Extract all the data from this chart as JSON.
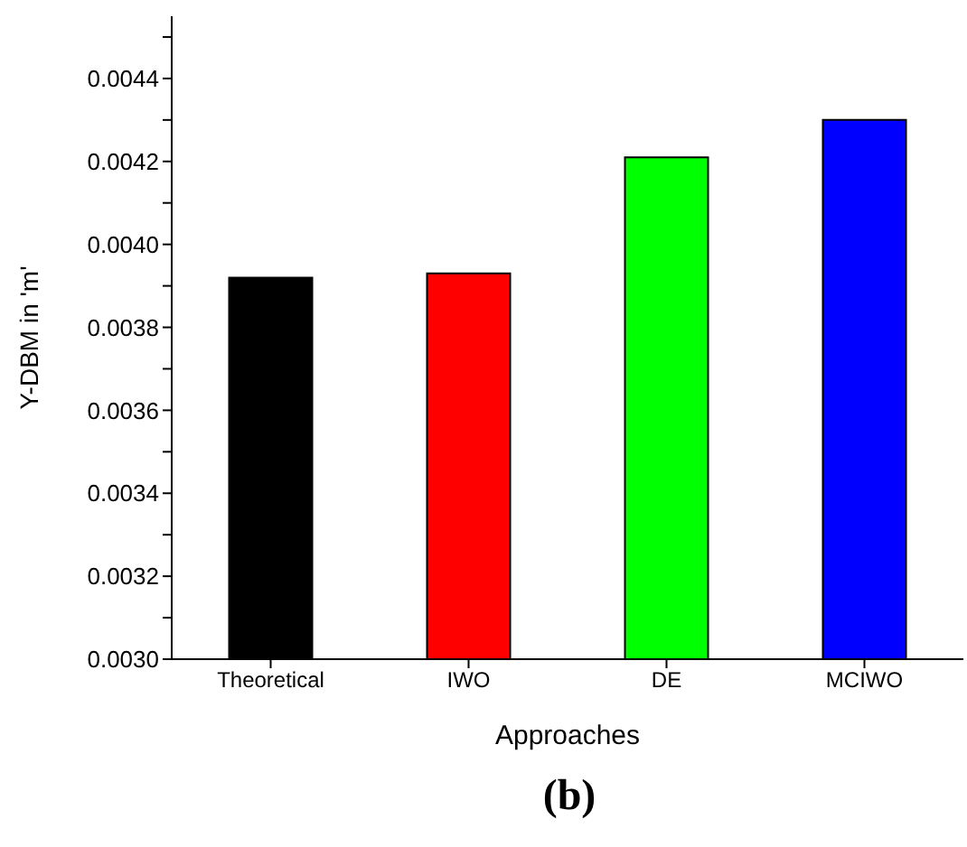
{
  "chart_data": {
    "type": "bar",
    "title": "(b)",
    "xlabel": "Approaches",
    "ylabel": "Y-DBM in 'm'",
    "categories": [
      "Theoretical",
      "IWO",
      "DE",
      "MCIWO"
    ],
    "values": [
      0.00392,
      0.00393,
      0.00421,
      0.0043
    ],
    "colors": [
      "#000000",
      "#ff0000",
      "#00ff00",
      "#0000ff"
    ],
    "ylim": [
      0.003,
      0.00455
    ],
    "yticks": [
      {
        "value": 0.003,
        "label": "0.0030"
      },
      {
        "value": 0.0031,
        "label": null
      },
      {
        "value": 0.0032,
        "label": "0.0032"
      },
      {
        "value": 0.0033,
        "label": null
      },
      {
        "value": 0.0034,
        "label": "0.0034"
      },
      {
        "value": 0.0035,
        "label": null
      },
      {
        "value": 0.0036,
        "label": "0.0036"
      },
      {
        "value": 0.0037,
        "label": null
      },
      {
        "value": 0.0038,
        "label": "0.0038"
      },
      {
        "value": 0.0039,
        "label": null
      },
      {
        "value": 0.004,
        "label": "0.0040"
      },
      {
        "value": 0.0041,
        "label": null
      },
      {
        "value": 0.0042,
        "label": "0.0042"
      },
      {
        "value": 0.0043,
        "label": null
      },
      {
        "value": 0.0044,
        "label": "0.0044"
      },
      {
        "value": 0.0045,
        "label": null
      }
    ],
    "grid": false,
    "legend": false
  }
}
